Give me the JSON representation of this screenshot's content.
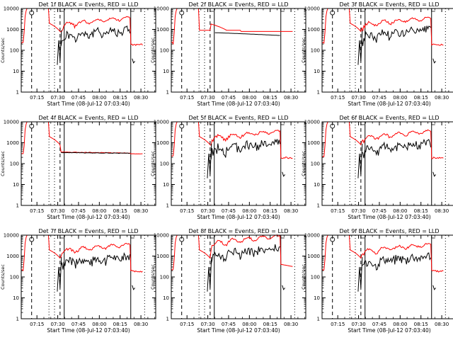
{
  "chart_data": [
    {
      "type": "line",
      "detector": "2f",
      "title": "Det 2f BLACK = Events, RED = LLD",
      "xlabel": "Start Time (08-Jul-12 07:03:40)",
      "ylabel": "Counts/sec",
      "xticks": [
        "07:15",
        "07:30",
        "07:45",
        "08:00",
        "08:15",
        "08:30"
      ],
      "yticks": [
        "1",
        "10",
        "100",
        "1000",
        "10000"
      ],
      "ylim": [
        1,
        10000
      ],
      "scale": "log"
    },
    {
      "type": "line",
      "detector": "1f",
      "title": "Det 1f BLACK = Events, RED = LLD",
      "xlabel": "Start Time (08-Jul-12 07:03:40)",
      "ylabel": "Counts/sec",
      "xticks": [
        "07:15",
        "07:30",
        "07:45",
        "08:00",
        "08:15",
        "08:30"
      ],
      "yticks": [
        "1",
        "10",
        "100",
        "1000",
        "10000"
      ],
      "ylim": [
        1,
        10000
      ],
      "scale": "log"
    },
    {
      "type": "line",
      "detector": "3f",
      "title": "Det 3f BLACK = Events, RED = LLD",
      "xlabel": "Start Time (08-Jul-12 07:03:40)",
      "ylabel": "Counts/sec",
      "xticks": [
        "07:15",
        "07:30",
        "07:45",
        "08:00",
        "08:15",
        "08:30"
      ],
      "yticks": [
        "1",
        "10",
        "100",
        "1000",
        "10000"
      ],
      "ylim": [
        1,
        10000
      ],
      "scale": "log"
    },
    {
      "type": "line",
      "detector": "4f",
      "title": "Det 4f BLACK = Events, RED = LLD",
      "xlabel": "Start Time (08-Jul-12 07:03:40)",
      "ylabel": "Counts/sec",
      "xticks": [
        "07:15",
        "07:30",
        "07:45",
        "08:00",
        "08:15",
        "08:30"
      ],
      "yticks": [
        "1",
        "10",
        "100",
        "1000",
        "10000"
      ],
      "ylim": [
        1,
        10000
      ],
      "scale": "log"
    },
    {
      "type": "line",
      "detector": "5f",
      "title": "Det 5f BLACK = Events, RED = LLD",
      "xlabel": "Start Time (08-Jul-12 07:03:40)",
      "ylabel": "Counts/sec",
      "xticks": [
        "07:15",
        "07:30",
        "07:45",
        "08:00",
        "08:15",
        "08:30"
      ],
      "yticks": [
        "1",
        "10",
        "100",
        "1000",
        "10000"
      ],
      "ylim": [
        1,
        10000
      ],
      "scale": "log"
    },
    {
      "type": "line",
      "detector": "6f",
      "title": "Det 6f BLACK = Events, RED = LLD",
      "xlabel": "Start Time (08-Jul-12 07:03:40)",
      "ylabel": "Counts/sec",
      "xticks": [
        "07:15",
        "07:30",
        "07:45",
        "08:00",
        "08:15",
        "08:30"
      ],
      "yticks": [
        "1",
        "10",
        "100",
        "1000",
        "10000"
      ],
      "ylim": [
        1,
        10000
      ],
      "scale": "log"
    },
    {
      "type": "line",
      "detector": "7f",
      "title": "Det 7f BLACK = Events, RED = LLD",
      "xlabel": "Start Time (08-Jul-12 07:03:40)",
      "ylabel": "Counts/sec",
      "xticks": [
        "07:15",
        "07:30",
        "07:45",
        "08:00",
        "08:15",
        "08:30"
      ],
      "yticks": [
        "1",
        "10",
        "100",
        "1000",
        "10000"
      ],
      "ylim": [
        1,
        10000
      ],
      "scale": "log"
    },
    {
      "type": "line",
      "detector": "8f",
      "title": "Det 8f BLACK = Events, RED = LLD",
      "xlabel": "Start Time (08-Jul-12 07:03:40)",
      "ylabel": "Counts/sec",
      "xticks": [
        "07:15",
        "07:30",
        "07:45",
        "08:00",
        "08:15",
        "08:30"
      ],
      "yticks": [
        "1",
        "10",
        "100",
        "1000",
        "10000"
      ],
      "ylim": [
        1,
        10000
      ],
      "scale": "log"
    },
    {
      "type": "line",
      "detector": "9f",
      "title": "Det 9f BLACK = Events, RED = LLD",
      "xlabel": "Start Time (08-Jul-12 07:03:40)",
      "ylabel": "Counts/sec",
      "xticks": [
        "07:15",
        "07:30",
        "07:45",
        "08:00",
        "08:15",
        "08:30"
      ],
      "yticks": [
        "1",
        "10",
        "100",
        "1000",
        "10000"
      ],
      "ylim": [
        1,
        10000
      ],
      "scale": "log"
    }
  ],
  "colors": {
    "events": "#000000",
    "lld": "#ff0000",
    "axes": "#000000",
    "background": "#ffffff"
  }
}
